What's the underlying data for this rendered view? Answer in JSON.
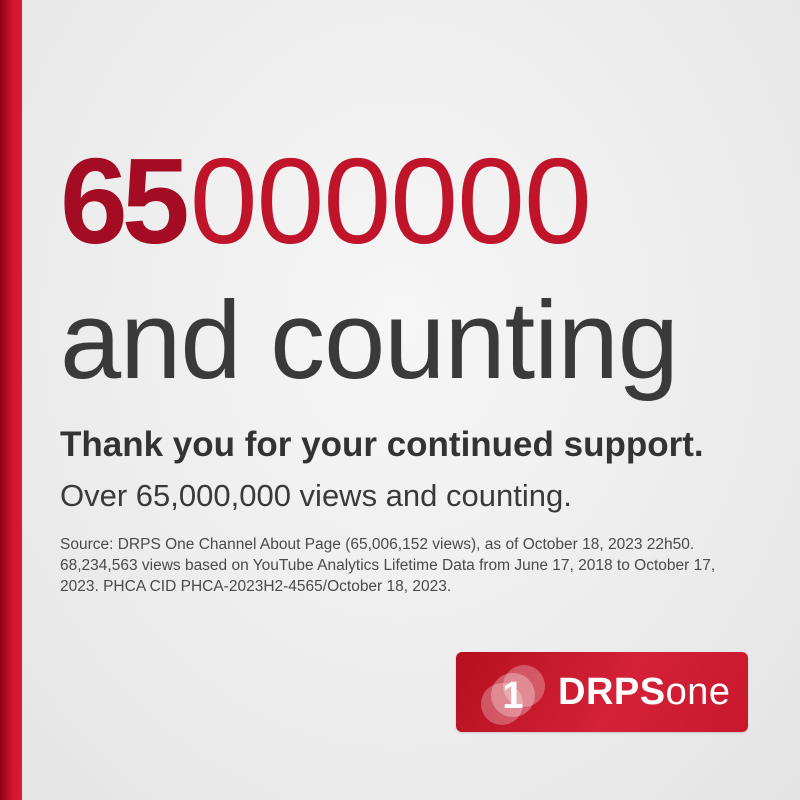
{
  "headline": {
    "bold_part": "65",
    "light_part": "000000"
  },
  "subline": "and counting",
  "thanks": "Thank you for your continued support.",
  "views_line": "Over 65,000,000 views and counting.",
  "source_text": "Source: DRPS One Channel About Page (65,006,152 views), as of October 18, 2023 22h50. 68,234,563 views based on YouTube Analytics Lifetime Data from June 17, 2018 to October 17, 2023. PHCA CID PHCA-2023H2-4565/October 18, 2023.",
  "logo": {
    "mark_digit": "1",
    "word_bold": "DRPS",
    "word_light": "one"
  },
  "colors": {
    "accent": "#c0142a",
    "accent_dark": "#a30c22",
    "text_dark": "#3a3a3a",
    "background": "#eeeeee"
  }
}
